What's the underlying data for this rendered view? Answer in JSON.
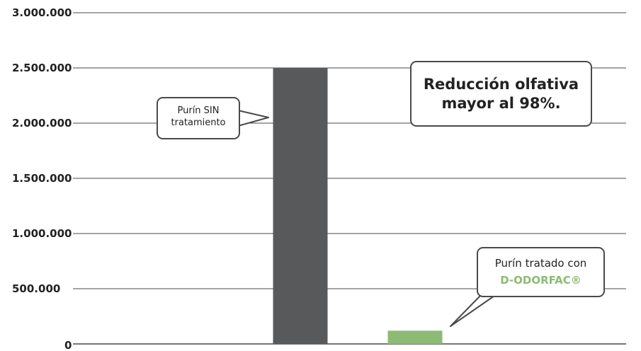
{
  "colors": {
    "bar_untreated": "#58595b",
    "bar_treated": "#8cbb74",
    "product_accent": "#8cbb74",
    "grid": "#4a4a4a"
  },
  "chart_data": {
    "type": "bar",
    "categories": [
      "",
      ""
    ],
    "values": [
      2500000,
      120000
    ],
    "ylim": [
      0,
      3000000
    ],
    "yticks": [
      "0",
      "500.000",
      "1.000.000",
      "1.500.000",
      "2.000.000",
      "2.500.000",
      "3.000.000"
    ],
    "ytick_values": [
      0,
      500000,
      1000000,
      1500000,
      2000000,
      2500000,
      3000000
    ],
    "grid": true,
    "legend": "none",
    "annotations": {
      "untreated": {
        "line1": "Purín SIN",
        "line2": "tratamiento"
      },
      "reduction": {
        "line1": "Reducción olfativa",
        "line2": "mayor al 98%."
      },
      "treated": {
        "line1": "Purín tratado con",
        "line2": "D-ODORFAC®"
      }
    }
  }
}
